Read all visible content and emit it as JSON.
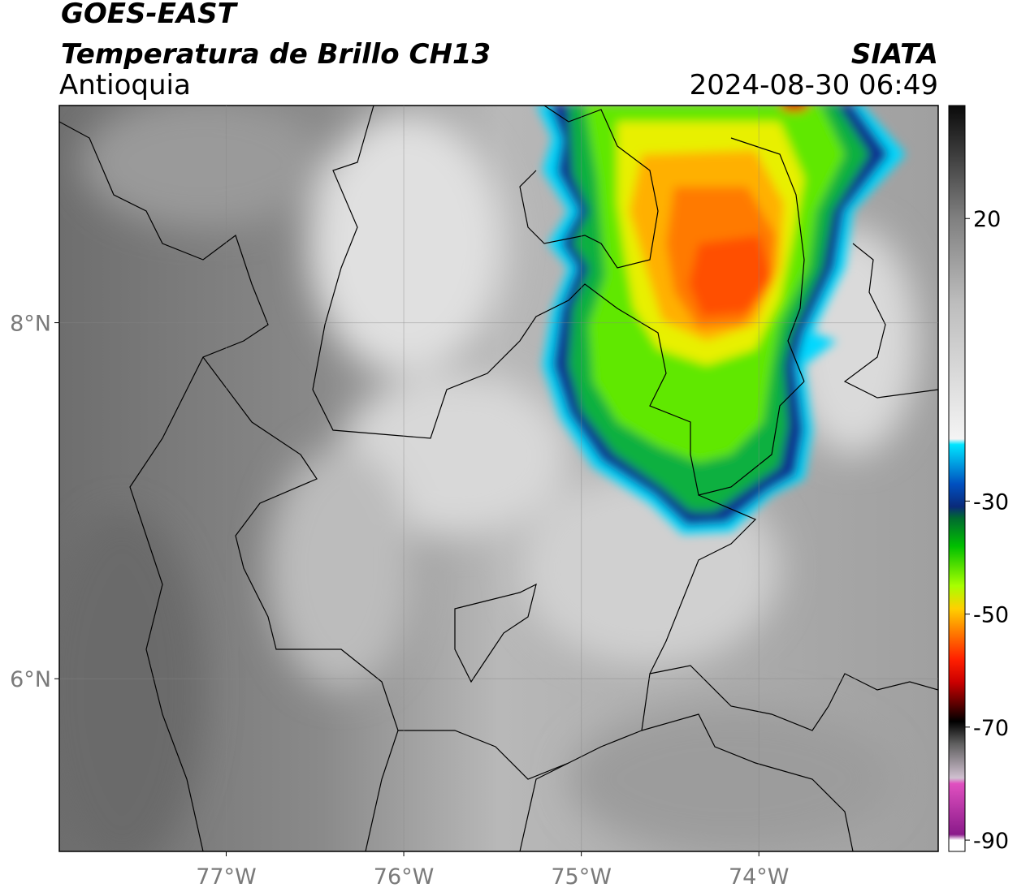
{
  "header": {
    "title": "GOES-EAST",
    "subtitle": "Temperatura de Brillo CH13",
    "region": "Antioquia",
    "source": "SIATA",
    "datetime": "2024-08-30 06:49"
  },
  "map": {
    "xlim": [
      -77.94,
      -72.99
    ],
    "ylim": [
      5.03,
      9.22
    ],
    "xticks": [
      {
        "value": -77,
        "label": "77°W"
      },
      {
        "value": -76,
        "label": "76°W"
      },
      {
        "value": -75,
        "label": "75°W"
      },
      {
        "value": -74,
        "label": "74°W"
      }
    ],
    "yticks": [
      {
        "value": 8,
        "label": "8°N"
      },
      {
        "value": 6,
        "label": "6°N"
      }
    ],
    "grid": true
  },
  "colorbar": {
    "lim": [
      -92,
      40
    ],
    "ticks": [
      20,
      -30,
      -50,
      -70,
      -90
    ],
    "stops": [
      {
        "value": 40,
        "color": "#0a0a0a"
      },
      {
        "value": 20,
        "color": "#808080"
      },
      {
        "value": 5,
        "color": "#bdbdbd"
      },
      {
        "value": -19,
        "color": "#f4f4f4"
      },
      {
        "value": -20,
        "color": "#00e5ff"
      },
      {
        "value": -27,
        "color": "#0050c0"
      },
      {
        "value": -31,
        "color": "#0a2a7a"
      },
      {
        "value": -33,
        "color": "#006a30"
      },
      {
        "value": -38,
        "color": "#00c000"
      },
      {
        "value": -45,
        "color": "#a8ff00"
      },
      {
        "value": -49,
        "color": "#ffd000"
      },
      {
        "value": -53,
        "color": "#ff8000"
      },
      {
        "value": -58,
        "color": "#ff2000"
      },
      {
        "value": -62,
        "color": "#cc0000"
      },
      {
        "value": -66,
        "color": "#5a0000"
      },
      {
        "value": -69,
        "color": "#000000"
      },
      {
        "value": -73,
        "color": "#606060"
      },
      {
        "value": -79,
        "color": "#d0c0d0"
      },
      {
        "value": -80,
        "color": "#e050c0"
      },
      {
        "value": -89,
        "color": "#8a1a8a"
      },
      {
        "value": -90,
        "color": "#ffffff"
      },
      {
        "value": -92,
        "color": "#ffffff"
      }
    ]
  }
}
